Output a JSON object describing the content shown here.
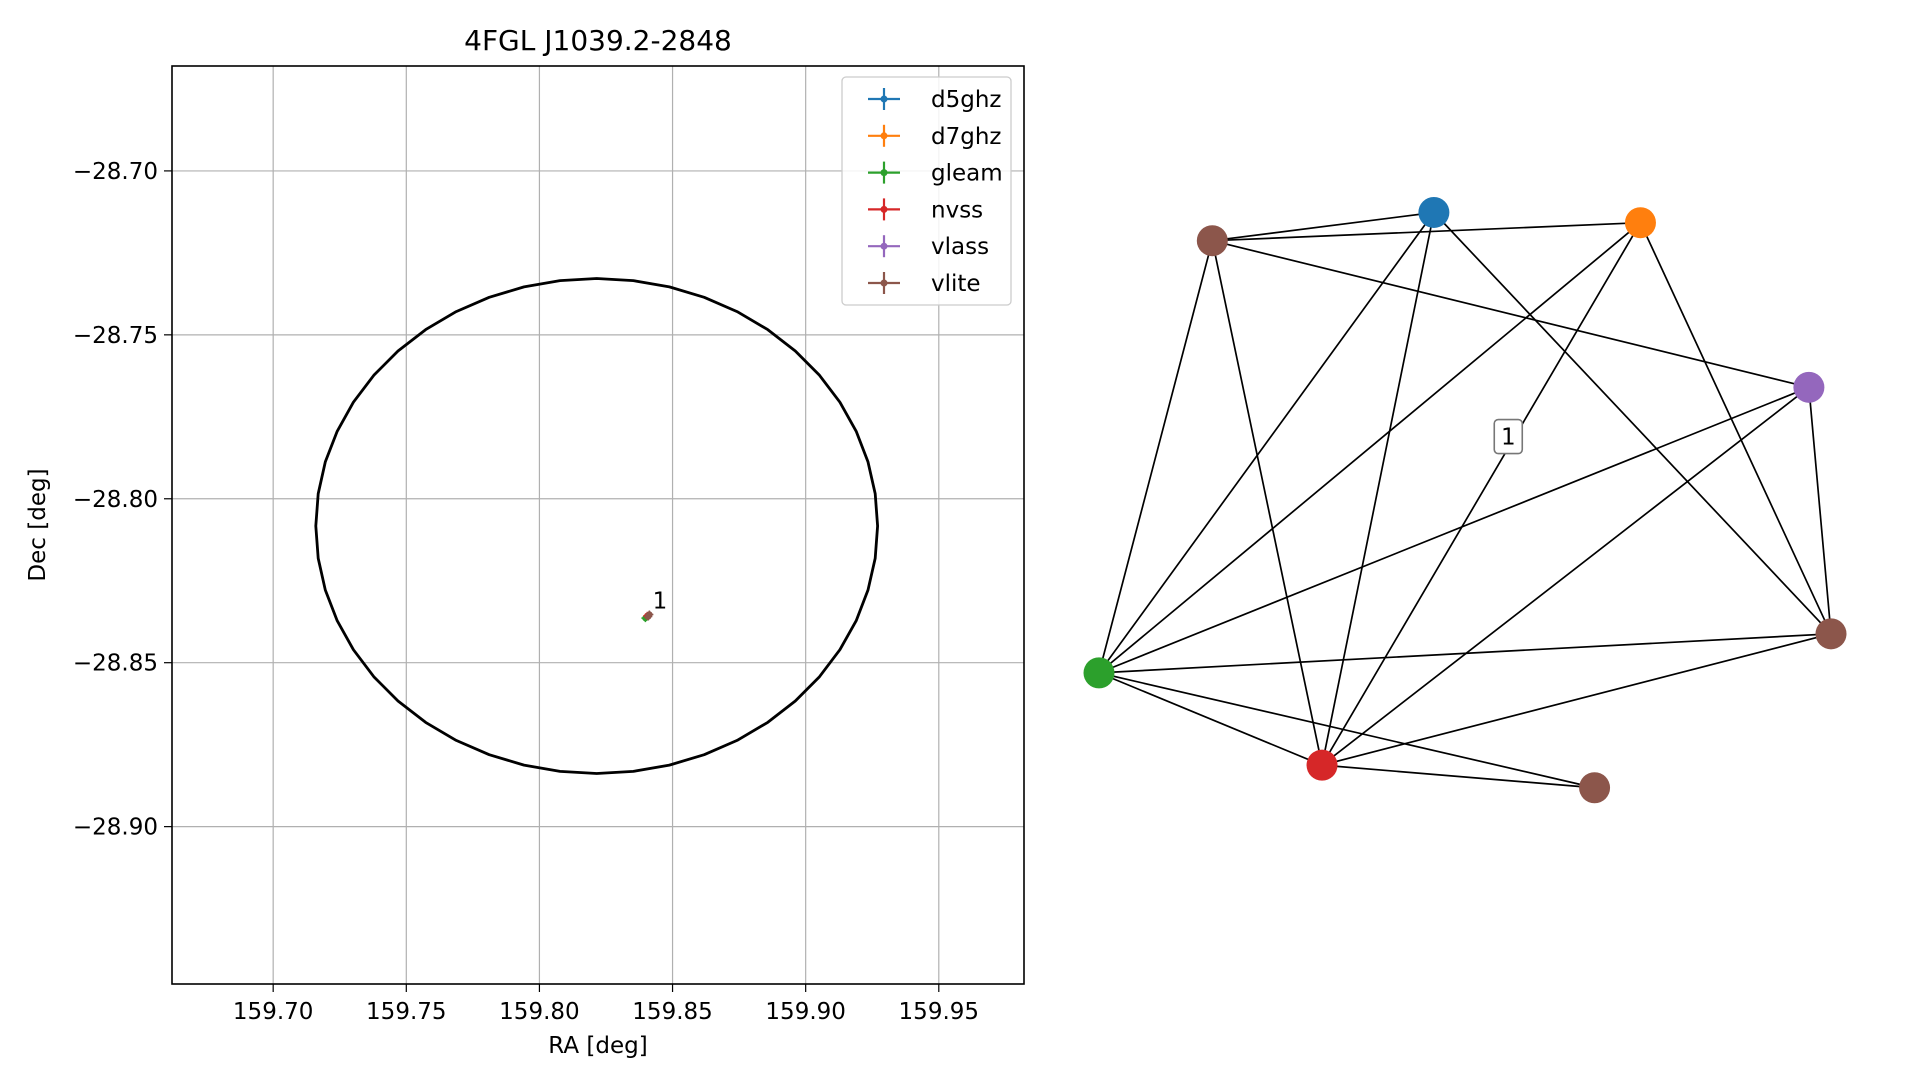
{
  "chart_data": [
    {
      "type": "scatter",
      "title": "4FGL J1039.2-2848",
      "xlabel": "RA [deg]",
      "ylabel": "Dec [deg]",
      "xlim": [
        159.662,
        159.982
      ],
      "ylim": [
        -28.948,
        -28.668
      ],
      "x_ticks": [
        {
          "value": 159.7,
          "label": "159.70"
        },
        {
          "value": 159.75,
          "label": "159.75"
        },
        {
          "value": 159.8,
          "label": "159.80"
        },
        {
          "value": 159.85,
          "label": "159.85"
        },
        {
          "value": 159.9,
          "label": "159.90"
        },
        {
          "value": 159.95,
          "label": "159.95"
        }
      ],
      "y_ticks": [
        {
          "value": -28.7,
          "label": "−28.70"
        },
        {
          "value": -28.75,
          "label": "−28.75"
        },
        {
          "value": -28.8,
          "label": "−28.80"
        },
        {
          "value": -28.85,
          "label": "−28.85"
        },
        {
          "value": -28.9,
          "label": "−28.90"
        }
      ],
      "grid": true,
      "legend_position": "top-right",
      "legend": [
        {
          "name": "d5ghz",
          "color": "#1f77b4"
        },
        {
          "name": "d7ghz",
          "color": "#ff7f0e"
        },
        {
          "name": "gleam",
          "color": "#2ca02c"
        },
        {
          "name": "nvss",
          "color": "#d62728"
        },
        {
          "name": "vlass",
          "color": "#9467bd"
        },
        {
          "name": "vlite",
          "color": "#8c564b"
        }
      ],
      "ellipse": {
        "center_ra": 159.8215,
        "center_dec": -28.8083,
        "semi_axis_ra": 0.1055,
        "semi_axis_dec": 0.0755,
        "color": "#000000"
      },
      "points": [
        {
          "series": "gleam",
          "ra": 159.8398,
          "dec": -28.8364,
          "color": "#2ca02c"
        },
        {
          "series": "nvss",
          "ra": 159.8405,
          "dec": -28.8357,
          "color": "#d62728"
        },
        {
          "series": "vlite",
          "ra": 159.8413,
          "dec": -28.8353,
          "color": "#8c564b"
        },
        {
          "series": "vlite",
          "ra": 159.8409,
          "dec": -28.8359,
          "color": "#8c564b"
        }
      ],
      "cluster_label": {
        "text": "1",
        "ra": 159.8425,
        "dec": -28.8335
      }
    },
    {
      "type": "network",
      "nodes": [
        {
          "id": "d5ghz",
          "color": "#1f77b4",
          "x": 0.4575,
          "y": 0.9593
        },
        {
          "id": "d7ghz",
          "color": "#ff7f0e",
          "x": 0.7397,
          "y": 0.9447
        },
        {
          "id": "vlite_a",
          "color": "#8c564b",
          "x": 0.1548,
          "y": 0.919
        },
        {
          "id": "vlass",
          "color": "#9467bd",
          "x": 0.9698,
          "y": 0.7095
        },
        {
          "id": "vlite_b",
          "color": "#8c564b",
          "x": 1.0,
          "y": 0.3574
        },
        {
          "id": "gleam",
          "color": "#2ca02c",
          "x": 0.0,
          "y": 0.3016
        },
        {
          "id": "nvss",
          "color": "#d62728",
          "x": 0.3047,
          "y": 0.1698
        },
        {
          "id": "vlite_c",
          "color": "#8c564b",
          "x": 0.677,
          "y": 0.1375
        }
      ],
      "edges": [
        [
          "d5ghz",
          "vlite_a"
        ],
        [
          "d5ghz",
          "gleam"
        ],
        [
          "d5ghz",
          "nvss"
        ],
        [
          "d5ghz",
          "vlite_b"
        ],
        [
          "d7ghz",
          "vlite_a"
        ],
        [
          "d7ghz",
          "gleam"
        ],
        [
          "d7ghz",
          "nvss"
        ],
        [
          "d7ghz",
          "vlite_b"
        ],
        [
          "vlite_a",
          "vlass"
        ],
        [
          "vlite_a",
          "gleam"
        ],
        [
          "vlite_a",
          "nvss"
        ],
        [
          "vlass",
          "gleam"
        ],
        [
          "vlass",
          "nvss"
        ],
        [
          "vlass",
          "vlite_b"
        ],
        [
          "vlite_b",
          "gleam"
        ],
        [
          "vlite_b",
          "nvss"
        ],
        [
          "gleam",
          "nvss"
        ],
        [
          "gleam",
          "vlite_c"
        ],
        [
          "nvss",
          "vlite_c"
        ]
      ],
      "cluster_label": {
        "text": "1",
        "x": 0.5591,
        "y": 0.6392
      }
    }
  ]
}
